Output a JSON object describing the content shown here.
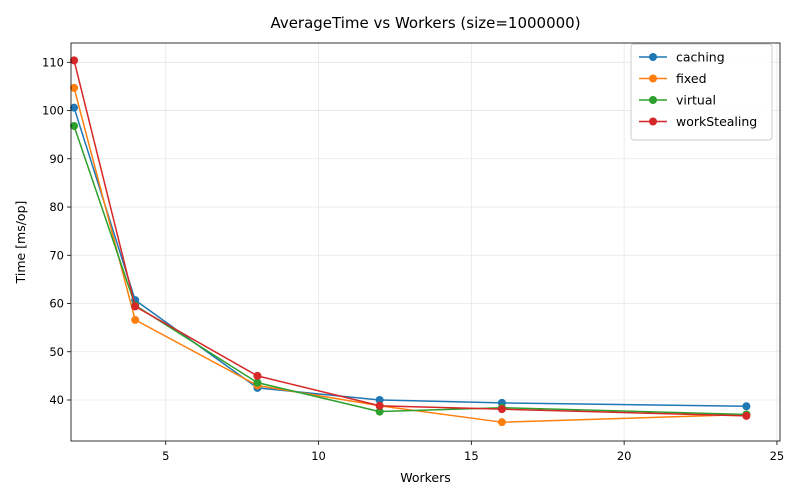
{
  "chart_data": {
    "type": "line",
    "title": "AverageTime vs Workers (size=1000000)",
    "xlabel": "Workers",
    "ylabel": "Time [ms/op]",
    "xlim": [
      1.9,
      25.1
    ],
    "ylim": [
      31.5,
      114.0
    ],
    "xticks": [
      5,
      10,
      15,
      20,
      25
    ],
    "yticks": [
      40,
      50,
      60,
      70,
      80,
      90,
      100,
      110
    ],
    "grid": true,
    "legend_position": "top-right",
    "x": [
      2,
      4,
      8,
      12,
      16,
      24
    ],
    "series": [
      {
        "name": "caching",
        "color": "#1f77b4",
        "values": [
          100.6,
          60.7,
          42.5,
          40.0,
          39.4,
          38.7
        ]
      },
      {
        "name": "fixed",
        "color": "#ff7f0e",
        "values": [
          104.7,
          56.6,
          43.0,
          38.8,
          35.4,
          37.0
        ]
      },
      {
        "name": "virtual",
        "color": "#2ca02c",
        "values": [
          96.8,
          59.6,
          43.6,
          37.6,
          38.4,
          37.0
        ]
      },
      {
        "name": "workStealing",
        "color": "#d62728",
        "values": [
          110.4,
          59.4,
          45.0,
          38.8,
          38.1,
          36.7
        ]
      }
    ]
  }
}
